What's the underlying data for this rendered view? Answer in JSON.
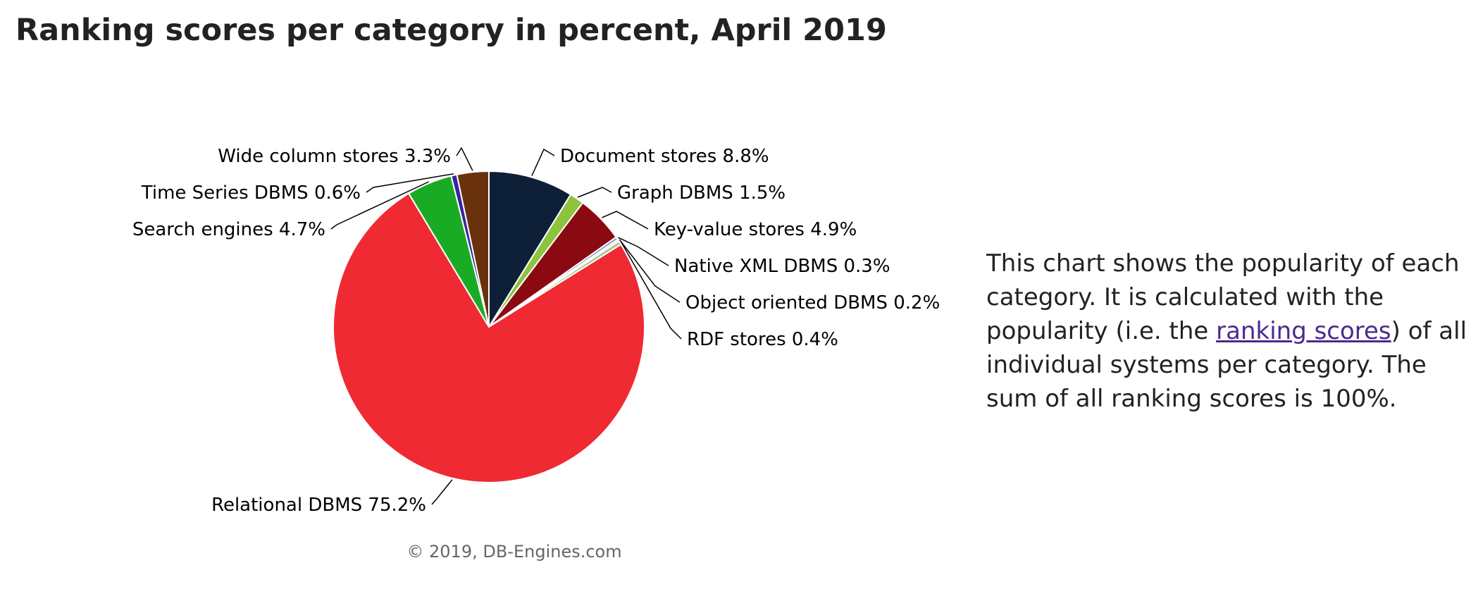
{
  "page": {
    "title": "Ranking scores per category in percent, April 2019"
  },
  "description": {
    "before_link": "This chart shows the popularity of each category. It is calculated with the popularity (i.e. the ",
    "link_text": "ranking scores",
    "after_link": ") of all individual systems per category. The sum of all ranking scores is 100%."
  },
  "chart_data": {
    "type": "pie",
    "title": "Ranking scores per category in percent, April 2019",
    "unit": "%",
    "credit": "© 2019, DB-Engines.com",
    "slices": [
      {
        "label": "Document stores 8.8%",
        "name": "Document stores",
        "value": 8.8,
        "color": "#0e2038"
      },
      {
        "label": "Graph DBMS 1.5%",
        "name": "Graph DBMS",
        "value": 1.5,
        "color": "#8cc43e"
      },
      {
        "label": "Key-value stores 4.9%",
        "name": "Key-value stores",
        "value": 4.9,
        "color": "#8b0a12"
      },
      {
        "label": "Native XML DBMS 0.3%",
        "name": "Native XML DBMS",
        "value": 0.3,
        "color": "#8a92c8"
      },
      {
        "label": "Object oriented DBMS 0.2%",
        "name": "Object oriented DBMS",
        "value": 0.2,
        "color": "#c9c9c9"
      },
      {
        "label": "RDF stores 0.4%",
        "name": "RDF stores",
        "value": 0.4,
        "color": "#a8c98a"
      },
      {
        "label": "Relational DBMS 75.2%",
        "name": "Relational DBMS",
        "value": 75.2,
        "color": "#ef2a32"
      },
      {
        "label": "Search engines 4.7%",
        "name": "Search engines",
        "value": 4.7,
        "color": "#1aab24"
      },
      {
        "label": "Time Series DBMS 0.6%",
        "name": "Time Series DBMS",
        "value": 0.6,
        "color": "#3a22a0"
      },
      {
        "label": "Wide column stores 3.3%",
        "name": "Wide column stores",
        "value": 3.3,
        "color": "#6a320c"
      }
    ]
  }
}
